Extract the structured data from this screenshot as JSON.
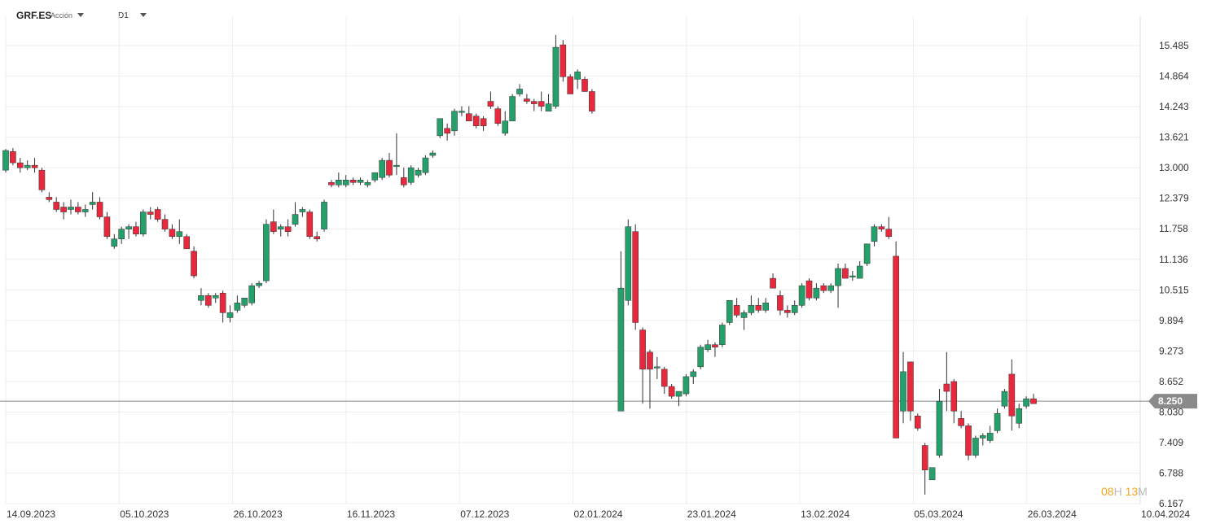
{
  "header": {
    "symbol": "GRF.ES",
    "instrument_type": "Acción",
    "timeframe": "D1"
  },
  "timer": {
    "hours": "08",
    "hours_unit": "H",
    "minutes": "13",
    "minutes_unit": "M"
  },
  "colors": {
    "up": "#26a06b",
    "down": "#e8283c",
    "wick": "#333333",
    "grid": "#eeeeee",
    "price_line": "#888888",
    "price_label_bg": "#8a8a8a",
    "timer": "#f5a623"
  },
  "chart_data": {
    "type": "candlestick",
    "title": "",
    "ylim": [
      6.167,
      15.9
    ],
    "current_price": 8.25,
    "current_price_label": "8.250",
    "y_ticks": [
      "15.485",
      "14.864",
      "14.243",
      "13.621",
      "13.000",
      "12.379",
      "11.758",
      "11.136",
      "10.515",
      "9.894",
      "9.273",
      "8.652",
      "8.030",
      "7.409",
      "6.788",
      "6.167"
    ],
    "x_tick_labels": [
      "14.09.2023",
      "05.10.2023",
      "26.10.2023",
      "16.11.2023",
      "07.12.2023",
      "02.01.2024",
      "23.01.2024",
      "13.02.2024",
      "05.03.2024",
      "26.03.2024",
      "10.04.2024"
    ],
    "candles": [
      [
        12.95,
        13.38,
        12.9,
        13.35
      ],
      [
        13.33,
        13.4,
        13.05,
        13.1
      ],
      [
        13.1,
        13.2,
        12.9,
        13.0
      ],
      [
        13.0,
        13.15,
        12.95,
        13.05
      ],
      [
        13.05,
        13.2,
        12.9,
        13.0
      ],
      [
        12.95,
        13.0,
        12.5,
        12.55
      ],
      [
        12.4,
        12.5,
        12.3,
        12.35
      ],
      [
        12.3,
        12.4,
        12.1,
        12.15
      ],
      [
        12.2,
        12.3,
        11.95,
        12.1
      ],
      [
        12.15,
        12.35,
        12.05,
        12.2
      ],
      [
        12.2,
        12.3,
        12.05,
        12.1
      ],
      [
        12.1,
        12.25,
        12.0,
        12.15
      ],
      [
        12.25,
        12.5,
        12.15,
        12.3
      ],
      [
        12.3,
        12.4,
        11.95,
        12.0
      ],
      [
        12.0,
        12.1,
        11.55,
        11.6
      ],
      [
        11.4,
        11.65,
        11.35,
        11.55
      ],
      [
        11.55,
        11.8,
        11.45,
        11.75
      ],
      [
        11.75,
        11.85,
        11.55,
        11.8
      ],
      [
        11.8,
        11.9,
        11.6,
        11.65
      ],
      [
        11.65,
        12.15,
        11.6,
        12.1
      ],
      [
        12.1,
        12.2,
        11.95,
        12.05
      ],
      [
        12.15,
        12.2,
        11.9,
        11.95
      ],
      [
        11.95,
        12.05,
        11.7,
        11.75
      ],
      [
        11.75,
        11.85,
        11.55,
        11.6
      ],
      [
        11.6,
        11.95,
        11.45,
        11.7
      ],
      [
        11.6,
        11.65,
        11.35,
        11.35
      ],
      [
        11.3,
        11.4,
        10.75,
        10.8
      ],
      [
        10.3,
        10.55,
        10.2,
        10.4
      ],
      [
        10.4,
        10.45,
        10.15,
        10.2
      ],
      [
        10.35,
        10.45,
        10.25,
        10.4
      ],
      [
        10.45,
        10.5,
        9.85,
        10.05
      ],
      [
        9.95,
        10.2,
        9.85,
        10.05
      ],
      [
        10.1,
        10.4,
        10.05,
        10.25
      ],
      [
        10.2,
        10.35,
        10.15,
        10.35
      ],
      [
        10.25,
        10.65,
        10.2,
        10.6
      ],
      [
        10.6,
        10.7,
        10.55,
        10.65
      ],
      [
        10.7,
        11.95,
        10.65,
        11.85
      ],
      [
        11.9,
        12.15,
        11.65,
        11.7
      ],
      [
        11.75,
        11.85,
        11.6,
        11.8
      ],
      [
        11.8,
        11.95,
        11.6,
        11.7
      ],
      [
        11.85,
        12.3,
        11.8,
        12.05
      ],
      [
        12.1,
        12.2,
        12.0,
        12.15
      ],
      [
        12.1,
        12.15,
        11.55,
        11.6
      ],
      [
        11.6,
        11.7,
        11.5,
        11.55
      ],
      [
        11.75,
        12.35,
        11.7,
        12.3
      ],
      [
        12.7,
        12.75,
        12.6,
        12.65
      ],
      [
        12.65,
        12.9,
        12.6,
        12.75
      ],
      [
        12.65,
        12.85,
        12.6,
        12.75
      ],
      [
        12.75,
        12.8,
        12.65,
        12.7
      ],
      [
        12.7,
        12.8,
        12.65,
        12.75
      ],
      [
        12.65,
        12.75,
        12.6,
        12.7
      ],
      [
        12.75,
        12.9,
        12.7,
        12.9
      ],
      [
        12.8,
        13.2,
        12.75,
        13.15
      ],
      [
        13.15,
        13.3,
        12.8,
        12.85
      ],
      [
        13.05,
        13.7,
        12.85,
        13.05
      ],
      [
        12.8,
        13.0,
        12.6,
        12.65
      ],
      [
        12.7,
        13.05,
        12.65,
        13.0
      ],
      [
        12.85,
        13.0,
        12.8,
        12.95
      ],
      [
        12.9,
        13.25,
        12.85,
        13.2
      ],
      [
        13.25,
        13.35,
        13.2,
        13.3
      ],
      [
        13.65,
        14.0,
        13.6,
        14.0
      ],
      [
        13.8,
        13.9,
        13.55,
        13.7
      ],
      [
        13.75,
        14.2,
        13.65,
        14.15
      ],
      [
        14.15,
        14.25,
        14.05,
        14.15
      ],
      [
        14.1,
        14.25,
        13.95,
        13.95
      ],
      [
        14.05,
        14.1,
        13.8,
        13.85
      ],
      [
        14.0,
        14.05,
        13.75,
        13.85
      ],
      [
        14.35,
        14.55,
        14.2,
        14.25
      ],
      [
        14.2,
        14.25,
        13.85,
        13.9
      ],
      [
        13.7,
        14.15,
        13.65,
        13.95
      ],
      [
        13.95,
        14.5,
        13.95,
        14.45
      ],
      [
        14.5,
        14.7,
        14.45,
        14.6
      ],
      [
        14.4,
        14.5,
        14.3,
        14.35
      ],
      [
        14.35,
        14.4,
        14.15,
        14.3
      ],
      [
        14.35,
        14.55,
        14.15,
        14.25
      ],
      [
        14.15,
        14.5,
        14.15,
        14.3
      ],
      [
        14.25,
        15.7,
        14.2,
        15.45
      ],
      [
        15.5,
        15.6,
        14.75,
        14.85
      ],
      [
        14.85,
        14.9,
        14.5,
        14.5
      ],
      [
        14.8,
        15.0,
        14.6,
        14.95
      ],
      [
        14.8,
        14.85,
        14.55,
        14.55
      ],
      [
        14.55,
        14.6,
        14.1,
        14.15
      ],
      [
        8.05,
        11.3,
        8.05,
        10.55
      ],
      [
        10.3,
        11.95,
        10.2,
        11.8
      ],
      [
        11.7,
        11.85,
        9.7,
        9.85
      ],
      [
        9.7,
        9.75,
        8.2,
        8.9
      ],
      [
        9.25,
        9.3,
        8.1,
        8.9
      ],
      [
        8.95,
        9.15,
        8.7,
        8.95
      ],
      [
        8.9,
        8.95,
        8.4,
        8.55
      ],
      [
        8.55,
        8.6,
        8.3,
        8.35
      ],
      [
        8.35,
        8.4,
        8.15,
        8.45
      ],
      [
        8.4,
        8.8,
        8.35,
        8.75
      ],
      [
        8.75,
        8.9,
        8.6,
        8.85
      ],
      [
        8.95,
        9.4,
        8.9,
        9.35
      ],
      [
        9.3,
        9.5,
        9.25,
        9.4
      ],
      [
        9.4,
        9.45,
        9.15,
        9.35
      ],
      [
        9.4,
        9.85,
        9.35,
        9.8
      ],
      [
        9.85,
        10.3,
        9.8,
        10.3
      ],
      [
        10.2,
        10.35,
        9.95,
        10.0
      ],
      [
        9.95,
        10.1,
        9.7,
        10.05
      ],
      [
        10.05,
        10.4,
        10.0,
        10.2
      ],
      [
        10.2,
        10.35,
        10.05,
        10.1
      ],
      [
        10.1,
        10.35,
        10.05,
        10.25
      ],
      [
        10.75,
        10.85,
        10.55,
        10.55
      ],
      [
        10.4,
        10.5,
        10.0,
        10.1
      ],
      [
        10.1,
        10.2,
        9.95,
        10.05
      ],
      [
        10.05,
        10.3,
        10.0,
        10.2
      ],
      [
        10.2,
        10.65,
        10.15,
        10.6
      ],
      [
        10.7,
        10.75,
        10.3,
        10.35
      ],
      [
        10.35,
        10.65,
        10.3,
        10.55
      ],
      [
        10.6,
        10.65,
        10.45,
        10.5
      ],
      [
        10.5,
        10.65,
        10.45,
        10.6
      ],
      [
        10.6,
        11.05,
        10.15,
        10.95
      ],
      [
        10.95,
        11.05,
        10.75,
        10.75
      ],
      [
        10.8,
        10.9,
        10.7,
        10.8
      ],
      [
        10.75,
        11.1,
        10.75,
        11.0
      ],
      [
        11.05,
        11.45,
        11.0,
        11.45
      ],
      [
        11.5,
        11.85,
        11.4,
        11.8
      ],
      [
        11.8,
        11.85,
        11.7,
        11.75
      ],
      [
        11.75,
        12.0,
        11.55,
        11.6
      ],
      [
        11.2,
        11.5,
        7.5,
        7.5
      ],
      [
        8.05,
        9.25,
        7.8,
        8.85
      ],
      [
        9.05,
        9.05,
        7.85,
        8.05
      ],
      [
        7.95,
        8.0,
        7.65,
        7.7
      ],
      [
        7.35,
        7.4,
        6.35,
        6.85
      ],
      [
        6.65,
        6.85,
        6.65,
        6.9
      ],
      [
        7.15,
        8.5,
        7.1,
        8.25
      ],
      [
        8.6,
        9.25,
        8.05,
        8.45
      ],
      [
        8.65,
        8.7,
        7.8,
        8.05
      ],
      [
        7.9,
        8.05,
        7.7,
        7.75
      ],
      [
        7.75,
        7.8,
        7.05,
        7.15
      ],
      [
        7.15,
        7.55,
        7.1,
        7.5
      ],
      [
        7.5,
        7.6,
        7.35,
        7.55
      ],
      [
        7.45,
        7.75,
        7.4,
        7.6
      ],
      [
        7.65,
        8.1,
        7.6,
        8.0
      ],
      [
        8.15,
        8.5,
        8.1,
        8.45
      ],
      [
        8.8,
        9.1,
        7.65,
        7.95
      ],
      [
        7.8,
        8.2,
        7.7,
        8.1
      ],
      [
        8.15,
        8.35,
        8.1,
        8.3
      ],
      [
        8.3,
        8.4,
        8.2,
        8.2
      ]
    ]
  }
}
